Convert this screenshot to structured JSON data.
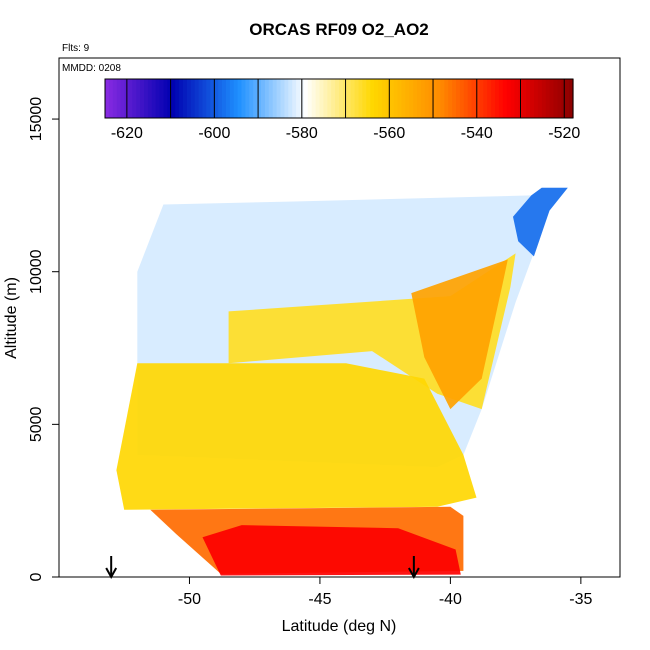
{
  "chart_data": {
    "type": "heatmap",
    "title": "ORCAS RF09 O2_AO2",
    "top_left_labels": {
      "flights": "Flts: 9",
      "date": "MMDD: 0208"
    },
    "xlabel": "Latitude (deg N)",
    "ylabel": "Altitude (m)",
    "xlim": [
      -55.0,
      -33.5
    ],
    "ylim": [
      0,
      17000
    ],
    "x_ticks": [
      -50,
      -45,
      -40,
      -35
    ],
    "x_tick_labels": [
      "-50",
      "-45",
      "-40",
      "-35"
    ],
    "y_ticks": [
      0,
      5000,
      10000,
      15000
    ],
    "y_tick_labels": [
      "0",
      "5000",
      "10000",
      "15000"
    ],
    "colorbar": {
      "min": -625,
      "max": -518,
      "ticks": [
        -620,
        -600,
        -580,
        -560,
        -540,
        -520
      ],
      "tick_labels": [
        "-620",
        "-600",
        "-580",
        "-560",
        "-540",
        "-520"
      ],
      "colors": [
        "#8a2be2",
        "#0000b0",
        "#1e90ff",
        "#ffffff",
        "#ffd700",
        "#ff8c00",
        "#ff0000",
        "#8b0000"
      ]
    },
    "arrows_latitude": [
      -53.0,
      -41.4
    ],
    "regions": [
      {
        "name": "upper",
        "value": -582,
        "polygon": [
          [
            -51.0,
            12200
          ],
          [
            -46.0,
            12300
          ],
          [
            -36.9,
            12500
          ],
          [
            -36.5,
            12750
          ],
          [
            -35.5,
            12750
          ],
          [
            -36.2,
            12000
          ],
          [
            -37.5,
            9000
          ],
          [
            -38.8,
            5500
          ],
          [
            -39.5,
            4000
          ],
          [
            -40.5,
            3600
          ],
          [
            -52.0,
            4000
          ],
          [
            -52.0,
            10000
          ],
          [
            -51.0,
            12200
          ]
        ]
      },
      {
        "name": "upper-blue",
        "value": -598,
        "polygon": [
          [
            -36.9,
            12500
          ],
          [
            -36.5,
            12750
          ],
          [
            -35.5,
            12750
          ],
          [
            -36.2,
            12000
          ],
          [
            -36.8,
            10500
          ],
          [
            -37.4,
            11000
          ],
          [
            -37.6,
            11800
          ],
          [
            -36.9,
            12500
          ]
        ]
      },
      {
        "name": "tongue",
        "value": -566,
        "polygon": [
          [
            -48.5,
            8700
          ],
          [
            -40.0,
            9200
          ],
          [
            -37.5,
            10600
          ],
          [
            -37.7,
            9500
          ],
          [
            -38.8,
            5500
          ],
          [
            -40.5,
            6000
          ],
          [
            -43.0,
            7400
          ],
          [
            -48.5,
            7000
          ]
        ]
      },
      {
        "name": "tongue-orange",
        "value": -553,
        "polygon": [
          [
            -41.5,
            9300
          ],
          [
            -37.8,
            10400
          ],
          [
            -38.0,
            9600
          ],
          [
            -38.8,
            6500
          ],
          [
            -40.0,
            5500
          ],
          [
            -41.0,
            7200
          ]
        ]
      },
      {
        "name": "mid",
        "value": -564,
        "polygon": [
          [
            -52.0,
            7000
          ],
          [
            -44.0,
            7000
          ],
          [
            -41.0,
            6500
          ],
          [
            -39.5,
            4000
          ],
          [
            -39.0,
            2600
          ],
          [
            -40.5,
            2300
          ],
          [
            -52.5,
            2200
          ],
          [
            -52.8,
            3500
          ],
          [
            -52.0,
            7000
          ]
        ]
      },
      {
        "name": "low-orange",
        "value": -545,
        "polygon": [
          [
            -51.5,
            2200
          ],
          [
            -40.0,
            2300
          ],
          [
            -39.5,
            2000
          ],
          [
            -39.5,
            200
          ],
          [
            -48.8,
            100
          ],
          [
            -50.5,
            1400
          ]
        ]
      },
      {
        "name": "low-red",
        "value": -533,
        "polygon": [
          [
            -48.8,
            50
          ],
          [
            -39.6,
            80
          ],
          [
            -39.8,
            900
          ],
          [
            -42.0,
            1600
          ],
          [
            -48.0,
            1700
          ],
          [
            -49.5,
            1300
          ]
        ]
      }
    ]
  }
}
